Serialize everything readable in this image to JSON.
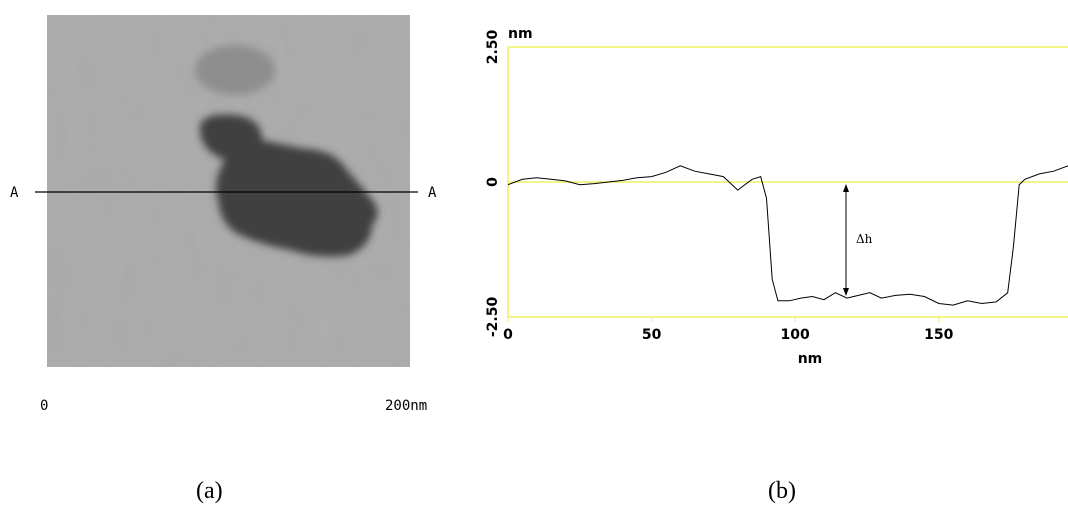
{
  "panel_a": {
    "left_marker": "A",
    "right_marker": "A",
    "scale_start": "0",
    "scale_end": "200nm"
  },
  "chart_data": {
    "type": "line",
    "x_unit": "nm",
    "y_unit": "nm",
    "annotation": "Δh",
    "color": "#000000",
    "x": [
      0,
      5,
      10,
      15,
      20,
      25,
      30,
      35,
      40,
      45,
      50,
      55,
      60,
      65,
      70,
      75,
      80,
      85,
      88,
      90,
      92,
      94,
      98,
      102,
      106,
      110,
      114,
      118,
      122,
      126,
      130,
      135,
      140,
      145,
      150,
      155,
      160,
      165,
      170,
      174,
      176,
      178,
      180,
      185,
      190,
      195
    ],
    "values": [
      -0.05,
      0.05,
      0.08,
      0.05,
      0.02,
      -0.05,
      -0.03,
      0.0,
      0.03,
      0.08,
      0.1,
      0.18,
      0.3,
      0.2,
      0.15,
      0.1,
      -0.15,
      0.05,
      0.1,
      -0.3,
      -1.8,
      -2.2,
      -2.2,
      -2.15,
      -2.12,
      -2.18,
      -2.05,
      -2.15,
      -2.1,
      -2.05,
      -2.15,
      -2.1,
      -2.08,
      -2.12,
      -2.25,
      -2.28,
      -2.2,
      -2.25,
      -2.22,
      -2.05,
      -1.2,
      -0.05,
      0.05,
      0.15,
      0.2,
      0.3
    ],
    "xlim": [
      0,
      195
    ],
    "ylim": [
      -2.5,
      2.5
    ],
    "xticks": [
      0,
      50,
      100,
      150
    ],
    "yticks": [
      {
        "value": -2.5,
        "label": "-2.50"
      },
      0,
      {
        "value": 2.5,
        "label": "2.50"
      }
    ],
    "grid": true,
    "grid_color": "#f0f060"
  },
  "captions": [
    "(a)",
    "(b)"
  ]
}
